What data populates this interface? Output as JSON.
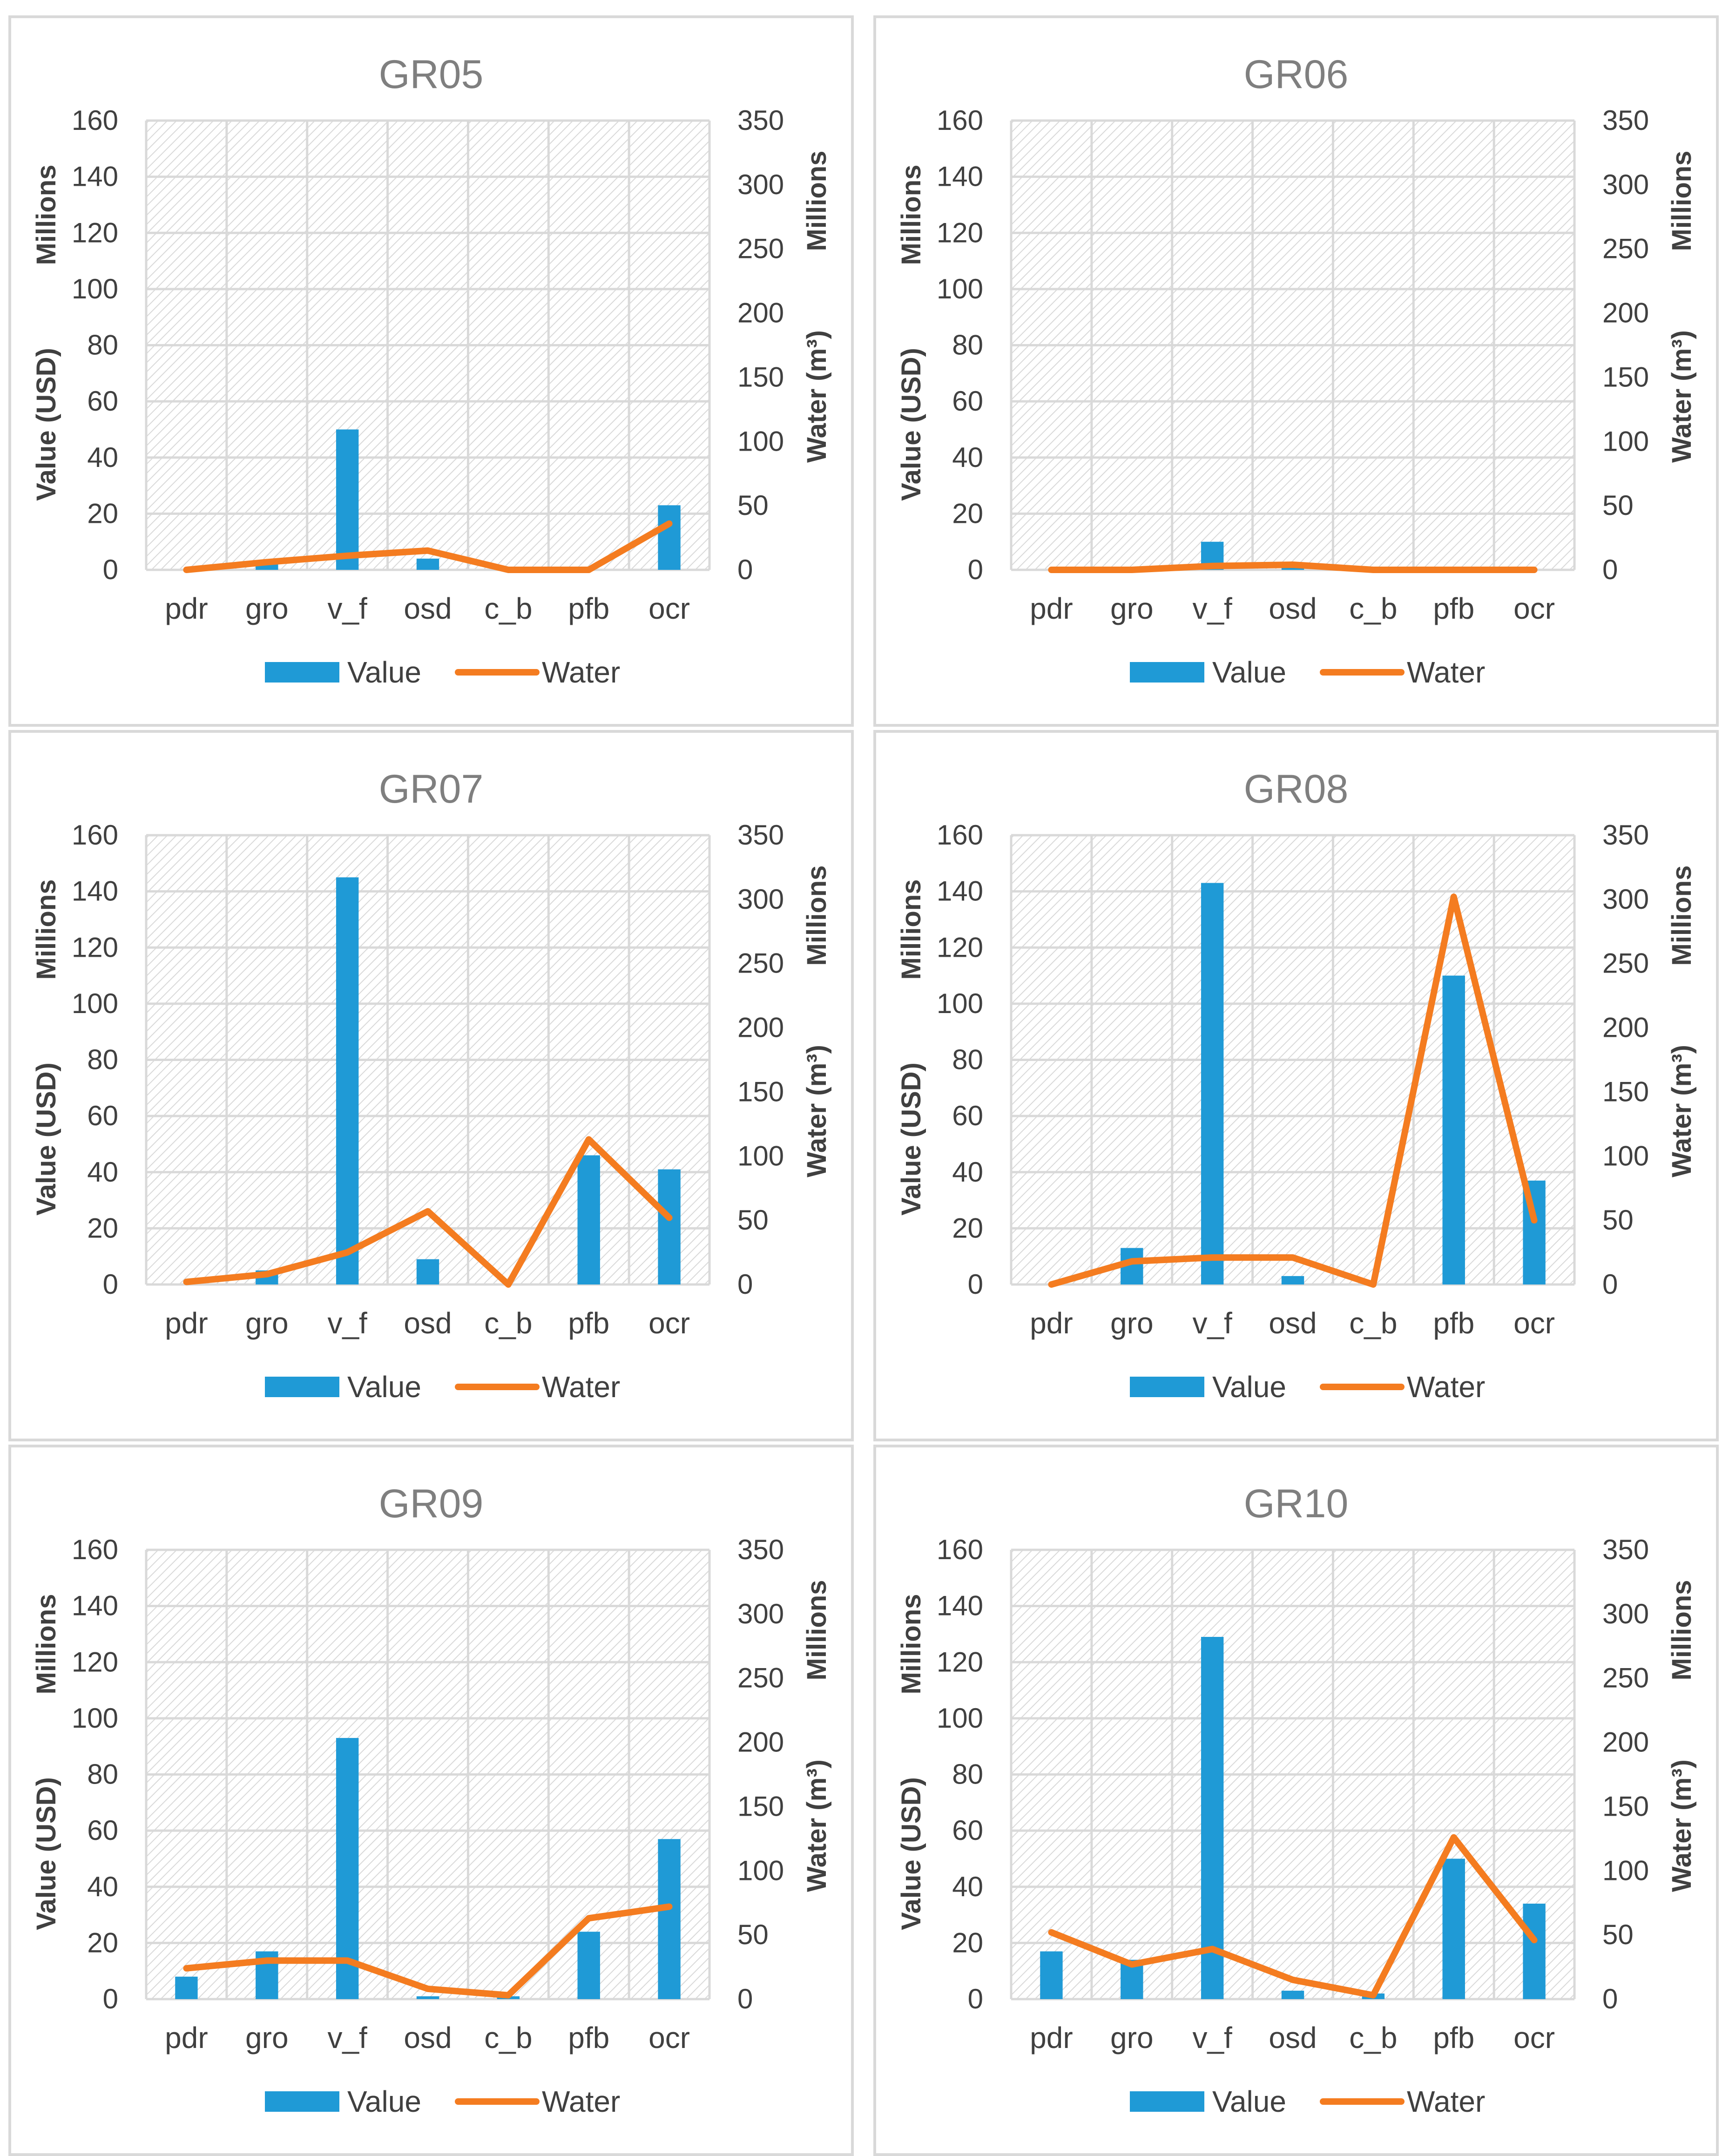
{
  "colors": {
    "value": "#1f9ad6",
    "water": "#f47c20",
    "grid": "#d9d9d9",
    "text": "#404040",
    "title": "#7f7f7f"
  },
  "chart_data": [
    {
      "type": "bar",
      "title": "GR05",
      "categories": [
        "pdr",
        "gro",
        "v_f",
        "osd",
        "c_b",
        "pfb",
        "ocr"
      ],
      "series": [
        {
          "name": "Value",
          "kind": "bar",
          "axis": "left",
          "values": [
            0,
            2,
            50,
            4,
            0,
            0,
            23
          ]
        },
        {
          "name": "Water",
          "kind": "line",
          "axis": "right",
          "values": [
            0,
            6,
            11,
            15,
            0,
            0,
            36
          ]
        }
      ],
      "ylabel": "Value (USD)",
      "ylabel_unit": "Millions",
      "y2label": "Water (m³)",
      "y2label_unit": "Millions",
      "ylim": [
        0,
        160
      ],
      "y2lim": [
        0,
        350
      ],
      "yticks": [
        "0",
        "20",
        "40",
        "60",
        "80",
        "100",
        "120",
        "140",
        "160"
      ],
      "y2ticks": [
        "0",
        "50",
        "100",
        "150",
        "200",
        "250",
        "300",
        "350"
      ],
      "legend": [
        "Value",
        "Water"
      ],
      "legend_position": "bottom",
      "grid": true
    },
    {
      "type": "bar",
      "title": "GR06",
      "categories": [
        "pdr",
        "gro",
        "v_f",
        "osd",
        "c_b",
        "pfb",
        "ocr"
      ],
      "series": [
        {
          "name": "Value",
          "kind": "bar",
          "axis": "left",
          "values": [
            0,
            0,
            10,
            1,
            0,
            0,
            0
          ]
        },
        {
          "name": "Water",
          "kind": "line",
          "axis": "right",
          "values": [
            0,
            0,
            3,
            4,
            0,
            0,
            0
          ]
        }
      ],
      "ylabel": "Value (USD)",
      "ylabel_unit": "Millions",
      "y2label": "Water (m³)",
      "y2label_unit": "Millions",
      "ylim": [
        0,
        160
      ],
      "y2lim": [
        0,
        350
      ],
      "yticks": [
        "0",
        "20",
        "40",
        "60",
        "80",
        "100",
        "120",
        "140",
        "160"
      ],
      "y2ticks": [
        "0",
        "50",
        "100",
        "150",
        "200",
        "250",
        "300",
        "350"
      ],
      "legend": [
        "Value",
        "Water"
      ],
      "legend_position": "bottom",
      "grid": true
    },
    {
      "type": "bar",
      "title": "GR07",
      "categories": [
        "pdr",
        "gro",
        "v_f",
        "osd",
        "c_b",
        "pfb",
        "ocr"
      ],
      "series": [
        {
          "name": "Value",
          "kind": "bar",
          "axis": "left",
          "values": [
            0,
            5,
            145,
            9,
            0,
            46,
            41
          ]
        },
        {
          "name": "Water",
          "kind": "line",
          "axis": "right",
          "values": [
            2,
            8,
            25,
            57,
            0,
            113,
            52
          ]
        }
      ],
      "ylabel": "Value (USD)",
      "ylabel_unit": "Millions",
      "y2label": "Water (m³)",
      "y2label_unit": "Millions",
      "ylim": [
        0,
        160
      ],
      "y2lim": [
        0,
        350
      ],
      "yticks": [
        "0",
        "20",
        "40",
        "60",
        "80",
        "100",
        "120",
        "140",
        "160"
      ],
      "y2ticks": [
        "0",
        "50",
        "100",
        "150",
        "200",
        "250",
        "300",
        "350"
      ],
      "legend": [
        "Value",
        "Water"
      ],
      "legend_position": "bottom",
      "grid": true
    },
    {
      "type": "bar",
      "title": "GR08",
      "categories": [
        "pdr",
        "gro",
        "v_f",
        "osd",
        "c_b",
        "pfb",
        "ocr"
      ],
      "series": [
        {
          "name": "Value",
          "kind": "bar",
          "axis": "left",
          "values": [
            0,
            13,
            143,
            3,
            0,
            110,
            37
          ]
        },
        {
          "name": "Water",
          "kind": "line",
          "axis": "right",
          "values": [
            0,
            18,
            21,
            21,
            0,
            302,
            50
          ]
        }
      ],
      "ylabel": "Value (USD)",
      "ylabel_unit": "Millions",
      "y2label": "Water (m³)",
      "y2label_unit": "Millions",
      "ylim": [
        0,
        160
      ],
      "y2lim": [
        0,
        350
      ],
      "yticks": [
        "0",
        "20",
        "40",
        "60",
        "80",
        "100",
        "120",
        "140",
        "160"
      ],
      "y2ticks": [
        "0",
        "50",
        "100",
        "150",
        "200",
        "250",
        "300",
        "350"
      ],
      "legend": [
        "Value",
        "Water"
      ],
      "legend_position": "bottom",
      "grid": true
    },
    {
      "type": "bar",
      "title": "GR09",
      "categories": [
        "pdr",
        "gro",
        "v_f",
        "osd",
        "c_b",
        "pfb",
        "ocr"
      ],
      "series": [
        {
          "name": "Value",
          "kind": "bar",
          "axis": "left",
          "values": [
            8,
            17,
            93,
            1,
            1,
            24,
            57
          ]
        },
        {
          "name": "Water",
          "kind": "line",
          "axis": "right",
          "values": [
            24,
            30,
            30,
            8,
            3,
            63,
            72
          ]
        }
      ],
      "ylabel": "Value (USD)",
      "ylabel_unit": "Millions",
      "y2label": "Water (m³)",
      "y2label_unit": "Millions",
      "ylim": [
        0,
        160
      ],
      "y2lim": [
        0,
        350
      ],
      "yticks": [
        "0",
        "20",
        "40",
        "60",
        "80",
        "100",
        "120",
        "140",
        "160"
      ],
      "y2ticks": [
        "0",
        "50",
        "100",
        "150",
        "200",
        "250",
        "300",
        "350"
      ],
      "legend": [
        "Value",
        "Water"
      ],
      "legend_position": "bottom",
      "grid": true
    },
    {
      "type": "bar",
      "title": "GR10",
      "categories": [
        "pdr",
        "gro",
        "v_f",
        "osd",
        "c_b",
        "pfb",
        "ocr"
      ],
      "series": [
        {
          "name": "Value",
          "kind": "bar",
          "axis": "left",
          "values": [
            17,
            14,
            129,
            3,
            2,
            50,
            34
          ]
        },
        {
          "name": "Water",
          "kind": "line",
          "axis": "right",
          "values": [
            52,
            27,
            39,
            15,
            3,
            126,
            46
          ]
        }
      ],
      "ylabel": "Value (USD)",
      "ylabel_unit": "Millions",
      "y2label": "Water (m³)",
      "y2label_unit": "Millions",
      "ylim": [
        0,
        160
      ],
      "y2lim": [
        0,
        350
      ],
      "yticks": [
        "0",
        "20",
        "40",
        "60",
        "80",
        "100",
        "120",
        "140",
        "160"
      ],
      "y2ticks": [
        "0",
        "50",
        "100",
        "150",
        "200",
        "250",
        "300",
        "350"
      ],
      "legend": [
        "Value",
        "Water"
      ],
      "legend_position": "bottom",
      "grid": true
    }
  ]
}
